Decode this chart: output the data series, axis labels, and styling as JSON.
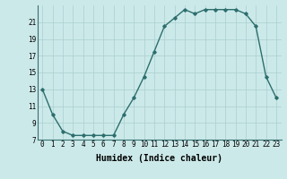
{
  "x": [
    0,
    1,
    2,
    3,
    4,
    5,
    6,
    7,
    8,
    9,
    10,
    11,
    12,
    13,
    14,
    15,
    16,
    17,
    18,
    19,
    20,
    21,
    22,
    23
  ],
  "y": [
    13,
    10,
    8,
    7.5,
    7.5,
    7.5,
    7.5,
    7.5,
    10,
    12,
    14.5,
    17.5,
    20.5,
    21.5,
    22.5,
    22,
    22.5,
    22.5,
    22.5,
    22.5,
    22,
    20.5,
    14.5,
    12
  ],
  "line_color": "#2d6e6e",
  "marker": "D",
  "marker_size": 1.8,
  "bg_color": "#cce9e9",
  "grid_color": "#aacfcf",
  "xlabel": "Humidex (Indice chaleur)",
  "xlabel_fontsize": 7,
  "ylim": [
    7,
    23
  ],
  "xlim": [
    -0.5,
    23.5
  ],
  "yticks": [
    7,
    9,
    11,
    13,
    15,
    17,
    19,
    21
  ],
  "xticks": [
    0,
    1,
    2,
    3,
    4,
    5,
    6,
    7,
    8,
    9,
    10,
    11,
    12,
    13,
    14,
    15,
    16,
    17,
    18,
    19,
    20,
    21,
    22,
    23
  ],
  "tick_fontsize": 5.5,
  "line_width": 1.0
}
